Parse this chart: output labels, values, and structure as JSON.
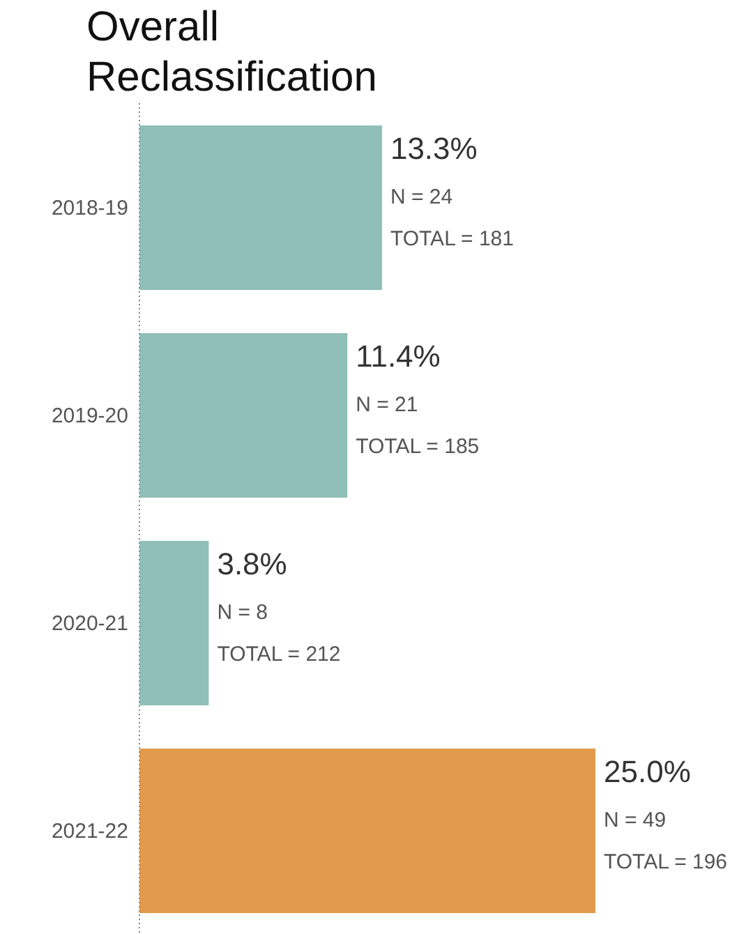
{
  "chart_data": {
    "type": "bar",
    "orientation": "horizontal",
    "title": "Overall\nReclassification",
    "categories": [
      "2018-19",
      "2019-20",
      "2020-21",
      "2021-22"
    ],
    "values": [
      13.3,
      11.4,
      3.8,
      25.0
    ],
    "colors": [
      "#8fbfb8",
      "#8fbfb8",
      "#8fbfb8",
      "#e29a4c"
    ],
    "value_labels": [
      "13.3%",
      "11.4%",
      "3.8%",
      "25.0%"
    ],
    "annotations": [
      {
        "text": "N = 24",
        "x": 13.3,
        "y": "2018-19"
      },
      {
        "text": "TOTAL = 181",
        "x": 13.3,
        "y": "2018-19"
      },
      {
        "text": "N = 21",
        "x": 11.4,
        "y": "2019-20"
      },
      {
        "text": "TOTAL = 185",
        "x": 11.4,
        "y": "2019-20"
      },
      {
        "text": "N = 8",
        "x": 3.8,
        "y": "2020-21"
      },
      {
        "text": "TOTAL = 212",
        "x": 3.8,
        "y": "2020-21"
      },
      {
        "text": "N = 49",
        "x": 25.0,
        "y": "2021-22"
      },
      {
        "text": "TOTAL = 196",
        "x": 25.0,
        "y": "2021-22"
      }
    ]
  }
}
